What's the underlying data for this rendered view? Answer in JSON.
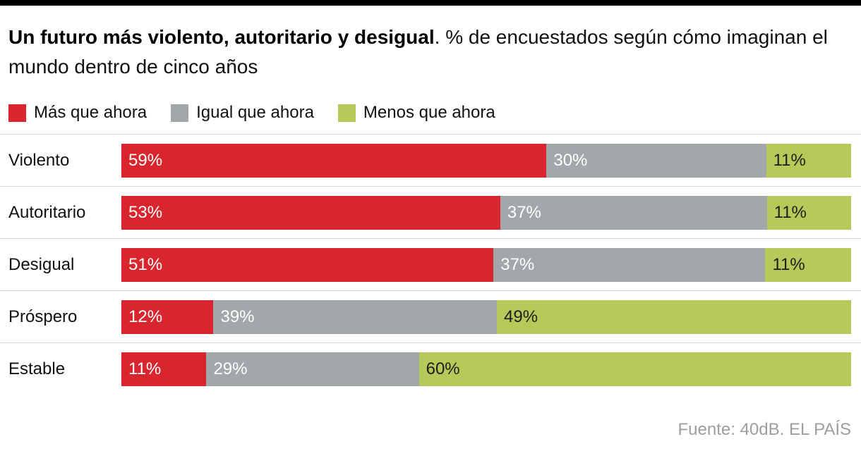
{
  "title": {
    "bold": "Un futuro más violento, autoritario y desigual",
    "rest": ". % de encuestados según cómo imaginan el mundo dentro de cinco años"
  },
  "legend": {
    "items": [
      {
        "label": "Más que ahora",
        "color": "#d9262e"
      },
      {
        "label": "Igual que ahora",
        "color": "#a2a8aa"
      },
      {
        "label": "Menos que ahora",
        "color": "#b6ca5a"
      }
    ]
  },
  "source": "Fuente: 40dB. EL PAÍS",
  "chart_data": {
    "type": "bar",
    "orientation": "horizontal",
    "stacked": true,
    "unit": "%",
    "xlim": [
      0,
      100
    ],
    "legend_position": "top",
    "grid": false,
    "title": "Un futuro más violento, autoritario y desigual. % de encuestados según cómo imaginan el mundo dentro de cinco años",
    "categories": [
      "Violento",
      "Autoritario",
      "Desigual",
      "Próspero",
      "Estable"
    ],
    "series": [
      {
        "name": "Más que ahora",
        "color": "#d9262e",
        "values": [
          59,
          53,
          51,
          12,
          11
        ]
      },
      {
        "name": "Igual que ahora",
        "color": "#a2a8aa",
        "values": [
          30,
          37,
          37,
          39,
          29
        ]
      },
      {
        "name": "Menos que ahora",
        "color": "#b6ca5a",
        "values": [
          11,
          11,
          11,
          49,
          60
        ]
      }
    ]
  }
}
